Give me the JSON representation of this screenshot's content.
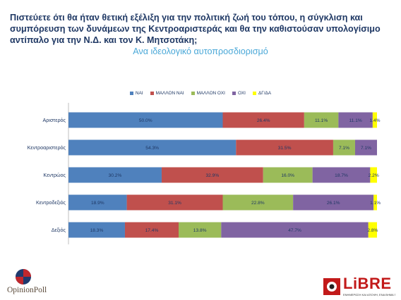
{
  "title": "Πιστεύετε ότι θα ήταν θετική εξέλιξη για την πολιτική ζωή του τόπου, η σύγκλιση και συμπόρευση των δυνάμεων της Κεντροαριστεράς και θα την καθιστούσαν υπολογίσιμο αντίπαλο για την Ν.Δ. και τον Κ. Μητσοτάκη;",
  "subtitle": "Ανα ιδεολογικό αυτοπροσδιορισμό",
  "logos": {
    "opinionpoll": "OpinionPoll",
    "libre": "LiBRE",
    "libre_tagline": "ΕΝΗΜΕΡΩΣΗ ΚΑΙ ΑΠΟΨΗ, ΕΝΑ ΒΗΜΑ ΠΡΙΝ ΑΠΟ ΤΑ ΑΛΛΑ"
  },
  "chart_data": {
    "type": "bar",
    "orientation": "horizontal",
    "stacked": true,
    "title": "Πιστεύετε ότι θα ήταν θετική εξέλιξη για την πολιτική ζωή του τόπου, η σύγκλιση και συμπόρευση των δυνάμεων της Κεντροαριστεράς και θα την καθιστούσαν υπολογίσιμο αντίπαλο για την Ν.Δ. και τον Κ. Μητσοτάκη;",
    "subtitle": "Ανα ιδεολογικό αυτοπροσδιορισμό",
    "xlabel": "",
    "ylabel": "",
    "xlim": [
      0,
      100
    ],
    "grid": false,
    "legend": "top-center",
    "categories": [
      "Αριστερός",
      "Κεντροαριστερός",
      "Κεντρώος",
      "Κεντροδεξιός",
      "Δεξιός"
    ],
    "series": [
      {
        "name": "ΝΑΙ",
        "color": "#4f81bd",
        "values": [
          50.0,
          54.3,
          30.2,
          18.9,
          18.3
        ]
      },
      {
        "name": "ΜΑΛΛΟΝ ΝΑΙ",
        "color": "#c0504d",
        "values": [
          26.4,
          31.5,
          32.9,
          31.1,
          17.4
        ]
      },
      {
        "name": "ΜΑΛΛΟΝ ΟΧΙ",
        "color": "#9bbb59",
        "values": [
          11.1,
          7.1,
          16.0,
          22.8,
          13.8
        ]
      },
      {
        "name": "ΟΧΙ",
        "color": "#8064a2",
        "values": [
          11.1,
          7.1,
          18.7,
          26.1,
          47.7
        ]
      },
      {
        "name": "ΔΓ/ΔΑ",
        "color": "#ffff00",
        "values": [
          1.4,
          null,
          2.2,
          1.1,
          2.8
        ]
      }
    ],
    "value_labels": [
      [
        "50.0%",
        "26.4%",
        "11.1%",
        "11.1%",
        "1.4%"
      ],
      [
        "54.3%",
        "31.5%",
        "7.1%",
        "7.1%",
        ""
      ],
      [
        "30.2%",
        "32.9%",
        "16.0%",
        "18.7%",
        "2.2%"
      ],
      [
        "18.9%",
        "31.1%",
        "22.8%",
        "26.1%",
        "1.1%"
      ],
      [
        "18.3%",
        "17.4%",
        "13.8%",
        "47.7%",
        "2.8%"
      ]
    ]
  }
}
